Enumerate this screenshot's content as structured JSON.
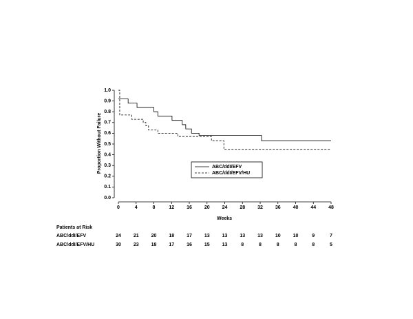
{
  "chart_data": {
    "type": "step",
    "x_label": "Weeks",
    "y_label": "Proportion Without Failure",
    "xlim": [
      0,
      48
    ],
    "xticks": [
      0,
      4,
      8,
      12,
      16,
      20,
      24,
      28,
      32,
      36,
      40,
      44,
      48
    ],
    "ylim": [
      0,
      1
    ],
    "yticks": [
      {
        "value": 0,
        "label": "0.0"
      },
      0.1,
      0.2,
      0.3,
      0.4,
      0.5,
      0.6,
      0.7,
      0.8,
      0.9,
      {
        "value": 1,
        "label": "1.0"
      }
    ],
    "legend": "center",
    "series": [
      {
        "name": "ABC/ddI/EFV",
        "color": "#000000",
        "dash": "solid",
        "x": [
          0,
          2.2,
          2.2,
          4.2,
          4.2,
          8,
          8,
          8.9,
          8.9,
          12.1,
          12.1,
          14.4,
          14.4,
          15.2,
          15.2,
          16.5,
          16.5,
          18.2,
          18.2,
          32.3,
          32.3,
          48
        ],
        "values": [
          0.92,
          0.92,
          0.88,
          0.88,
          0.84,
          0.84,
          0.8,
          0.8,
          0.76,
          0.76,
          0.72,
          0.72,
          0.68,
          0.68,
          0.64,
          0.64,
          0.6,
          0.6,
          0.58,
          0.58,
          0.53,
          0.53
        ]
      },
      {
        "name": "ABC/ddI/EFV/HU",
        "color": "#000000",
        "dash": "dashed",
        "x": [
          0,
          0.3,
          0.3,
          3,
          3,
          5.6,
          5.6,
          6.2,
          6.2,
          6.8,
          6.8,
          8.9,
          8.9,
          13.4,
          13.4,
          21,
          21,
          23.8,
          23.8,
          48
        ],
        "values": [
          1,
          1,
          0.77,
          0.77,
          0.73,
          0.73,
          0.7,
          0.7,
          0.67,
          0.67,
          0.63,
          0.63,
          0.6,
          0.6,
          0.57,
          0.57,
          0.53,
          0.53,
          0.45,
          0.45
        ]
      }
    ],
    "risk_table": {
      "title": "Patients at Risk",
      "rows": [
        {
          "name": "ABC/ddI/EFV",
          "values": [
            24,
            21,
            20,
            18,
            17,
            13,
            13,
            13,
            13,
            10,
            10,
            9,
            7
          ]
        },
        {
          "name": "ABC/ddI/EFV/HU",
          "values": [
            30,
            23,
            18,
            17,
            16,
            15,
            13,
            8,
            8,
            8,
            8,
            8,
            5
          ]
        }
      ]
    }
  }
}
